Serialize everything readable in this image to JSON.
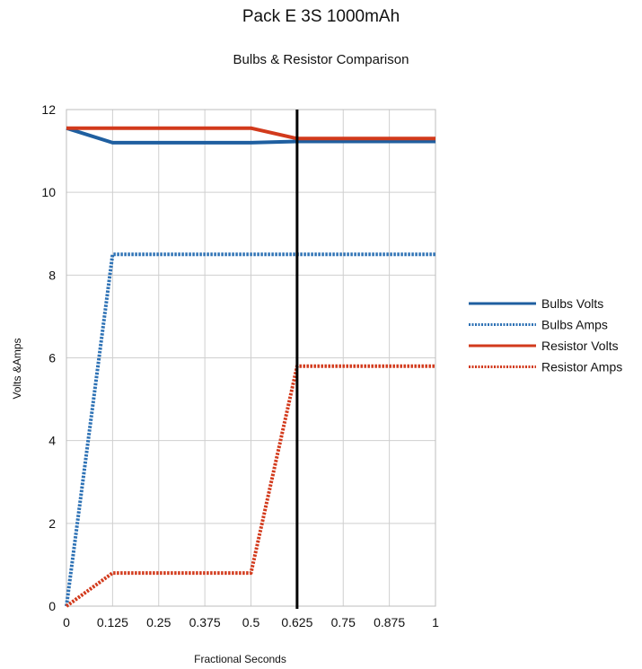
{
  "chart_data": {
    "type": "line",
    "title": "Pack E 3S 1000mAh",
    "subtitle": "Bulbs & Resistor Comparison",
    "xlabel": "Fractional Seconds",
    "ylabel": "Volts &Amps",
    "xlim": [
      0,
      1
    ],
    "ylim": [
      0,
      12
    ],
    "x_ticks": [
      "0",
      "0.125",
      "0.25",
      "0.375",
      "0.5",
      "0.625",
      "0.75",
      "0.875",
      "1"
    ],
    "y_ticks": [
      "0",
      "2",
      "4",
      "6",
      "8",
      "10",
      "12"
    ],
    "grid": true,
    "legend_position": "right",
    "vertical_marker_x": 0.625,
    "series": [
      {
        "name": "Bulbs Volts",
        "color": "#1f5fa0",
        "style": "solid",
        "x": [
          0,
          0.125,
          0.5,
          0.625,
          1
        ],
        "y": [
          11.55,
          11.2,
          11.2,
          11.23,
          11.23
        ]
      },
      {
        "name": "Bulbs Amps",
        "color": "#2e72b5",
        "style": "dotted",
        "x": [
          0,
          0.125,
          0.625,
          1
        ],
        "y": [
          0,
          8.5,
          8.5,
          8.5
        ]
      },
      {
        "name": "Resistor Volts",
        "color": "#d23a1c",
        "style": "solid",
        "x": [
          0,
          0.125,
          0.5,
          0.625,
          1
        ],
        "y": [
          11.55,
          11.55,
          11.55,
          11.3,
          11.3
        ]
      },
      {
        "name": "Resistor Amps",
        "color": "#d23a1c",
        "style": "dotted",
        "x": [
          0,
          0.125,
          0.5,
          0.625,
          1
        ],
        "y": [
          0,
          0.8,
          0.8,
          5.8,
          5.8
        ]
      }
    ]
  }
}
